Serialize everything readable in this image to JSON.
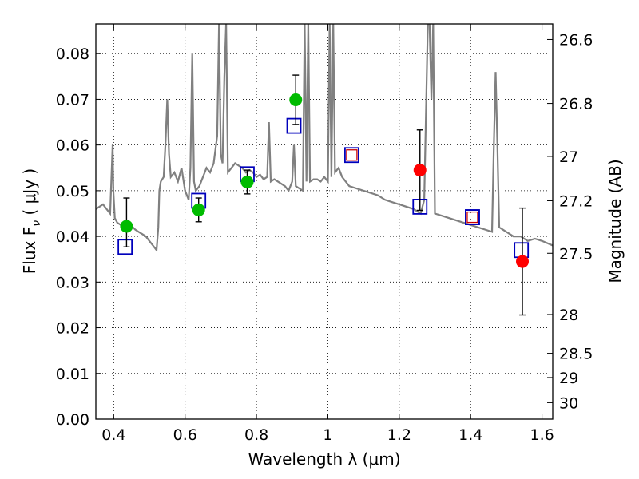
{
  "chart_data": {
    "type": "scatter",
    "xlabel": "Wavelength  λ (μm)",
    "ylabel": "Flux  F",
    "ylabel_sub": "ν",
    "ylabel_unit": " ( μJy )",
    "y2label": "Magnitude (AB)",
    "xlim": [
      0.35,
      1.63
    ],
    "ylim": [
      0.0,
      0.0865
    ],
    "grid": true,
    "x_ticks": [
      {
        "value": 0.4,
        "label": "0.4"
      },
      {
        "value": 0.6,
        "label": "0.6"
      },
      {
        "value": 0.8,
        "label": "0.8"
      },
      {
        "value": 1.0,
        "label": "1"
      },
      {
        "value": 1.2,
        "label": "1.2"
      },
      {
        "value": 1.4,
        "label": "1.4"
      },
      {
        "value": 1.6,
        "label": "1.6"
      }
    ],
    "y_ticks": [
      {
        "value": 0.0,
        "label": "0.00"
      },
      {
        "value": 0.01,
        "label": "0.01"
      },
      {
        "value": 0.02,
        "label": "0.02"
      },
      {
        "value": 0.03,
        "label": "0.03"
      },
      {
        "value": 0.04,
        "label": "0.04"
      },
      {
        "value": 0.05,
        "label": "0.05"
      },
      {
        "value": 0.06,
        "label": "0.06"
      },
      {
        "value": 0.07,
        "label": "0.07"
      },
      {
        "value": 0.08,
        "label": "0.08"
      }
    ],
    "mag_ticks": [
      {
        "flux": 0.0831,
        "label": "26.6"
      },
      {
        "flux": 0.0691,
        "label": "26.8"
      },
      {
        "flux": 0.0575,
        "label": "27"
      },
      {
        "flux": 0.0478,
        "label": "27.2"
      },
      {
        "flux": 0.0363,
        "label": "27.5"
      },
      {
        "flux": 0.0229,
        "label": "28"
      },
      {
        "flux": 0.0144,
        "label": "28.5"
      },
      {
        "flux": 0.0091,
        "label": "29"
      },
      {
        "flux": 0.0036,
        "label": "30"
      }
    ],
    "colors": {
      "model": "#808080",
      "green": "#00bb00",
      "red": "#ff0000",
      "model_box": "#0000bb",
      "upper_box": "#cc0000",
      "errorbar": "#000000"
    },
    "model_spectrum": {
      "x": [
        0.35,
        0.36,
        0.37,
        0.38,
        0.39,
        0.397,
        0.399,
        0.403,
        0.41,
        0.42,
        0.43,
        0.44,
        0.45,
        0.46,
        0.47,
        0.48,
        0.49,
        0.5,
        0.51,
        0.52,
        0.525,
        0.528,
        0.532,
        0.54,
        0.545,
        0.55,
        0.555,
        0.56,
        0.57,
        0.58,
        0.59,
        0.6,
        0.61,
        0.615,
        0.62,
        0.625,
        0.63,
        0.64,
        0.65,
        0.66,
        0.67,
        0.68,
        0.69,
        0.695,
        0.7,
        0.705,
        0.71,
        0.715,
        0.72,
        0.73,
        0.74,
        0.75,
        0.76,
        0.77,
        0.78,
        0.79,
        0.8,
        0.81,
        0.82,
        0.83,
        0.835,
        0.84,
        0.85,
        0.86,
        0.87,
        0.88,
        0.89,
        0.9,
        0.905,
        0.91,
        0.92,
        0.93,
        0.935,
        0.94,
        0.945,
        0.95,
        0.96,
        0.97,
        0.98,
        0.99,
        1.0,
        1.005,
        1.01,
        1.015,
        1.02,
        1.03,
        1.04,
        1.05,
        1.06,
        1.08,
        1.1,
        1.12,
        1.14,
        1.16,
        1.18,
        1.2,
        1.22,
        1.24,
        1.26,
        1.27,
        1.28,
        1.285,
        1.29,
        1.295,
        1.3,
        1.32,
        1.34,
        1.36,
        1.38,
        1.4,
        1.42,
        1.44,
        1.46,
        1.465,
        1.47,
        1.475,
        1.48,
        1.5,
        1.52,
        1.54,
        1.56,
        1.58,
        1.6,
        1.63
      ],
      "y": [
        0.046,
        0.0465,
        0.047,
        0.046,
        0.045,
        0.06,
        0.05,
        0.044,
        0.043,
        0.0425,
        0.0422,
        0.042,
        0.0423,
        0.0415,
        0.041,
        0.0405,
        0.04,
        0.039,
        0.038,
        0.037,
        0.042,
        0.05,
        0.052,
        0.053,
        0.06,
        0.07,
        0.058,
        0.053,
        0.054,
        0.052,
        0.055,
        0.05,
        0.048,
        0.055,
        0.08,
        0.052,
        0.05,
        0.051,
        0.053,
        0.055,
        0.054,
        0.056,
        0.062,
        0.0865,
        0.058,
        0.056,
        0.075,
        0.0865,
        0.054,
        0.055,
        0.056,
        0.0555,
        0.055,
        0.054,
        0.0545,
        0.054,
        0.053,
        0.0535,
        0.0525,
        0.053,
        0.065,
        0.052,
        0.0525,
        0.052,
        0.0515,
        0.051,
        0.05,
        0.052,
        0.06,
        0.051,
        0.0505,
        0.05,
        0.0865,
        0.052,
        0.0865,
        0.052,
        0.0525,
        0.0525,
        0.052,
        0.053,
        0.052,
        0.0865,
        0.053,
        0.0865,
        0.054,
        0.055,
        0.053,
        0.052,
        0.051,
        0.0505,
        0.05,
        0.0495,
        0.049,
        0.048,
        0.0475,
        0.047,
        0.0465,
        0.046,
        0.045,
        0.048,
        0.0865,
        0.0865,
        0.07,
        0.0865,
        0.045,
        0.0445,
        0.044,
        0.0435,
        0.043,
        0.0425,
        0.042,
        0.0415,
        0.041,
        0.06,
        0.076,
        0.06,
        0.042,
        0.041,
        0.04,
        0.04,
        0.039,
        0.0395,
        0.039,
        0.038
      ]
    },
    "observed_green": [
      {
        "x": 0.436,
        "y": 0.0422,
        "err_low": 0.0045,
        "err_high": 0.0062
      },
      {
        "x": 0.638,
        "y": 0.0458,
        "err_low": 0.0026,
        "err_high": 0.0026
      },
      {
        "x": 0.774,
        "y": 0.0519,
        "err_low": 0.0026,
        "err_high": 0.0026
      },
      {
        "x": 0.91,
        "y": 0.0699,
        "err_low": 0.0054,
        "err_high": 0.0054
      }
    ],
    "observed_red": [
      {
        "x": 1.258,
        "y": 0.0545,
        "err_low": 0.0088,
        "err_high": 0.0088
      },
      {
        "x": 1.545,
        "y": 0.0345,
        "err_low": 0.0117,
        "err_high": 0.0117
      }
    ],
    "model_photometry": [
      {
        "x": 0.432,
        "y": 0.0377
      },
      {
        "x": 0.638,
        "y": 0.0478
      },
      {
        "x": 0.774,
        "y": 0.0536
      },
      {
        "x": 0.905,
        "y": 0.0642
      },
      {
        "x": 1.258,
        "y": 0.0465
      },
      {
        "x": 1.405,
        "y": 0.0442
      },
      {
        "x": 1.542,
        "y": 0.037
      }
    ],
    "upper_limit_boxes": [
      {
        "x": 1.067,
        "y": 0.0578
      },
      {
        "x": 1.405,
        "y": 0.0442
      }
    ]
  }
}
